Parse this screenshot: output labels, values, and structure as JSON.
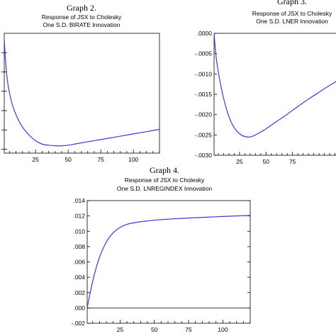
{
  "chart_data": [
    {
      "type": "line",
      "graph_title": "Graph 2.",
      "title": "Response of JSX to Cholesky",
      "subtitle": "One S.D. BIRATE Innovation",
      "xticks": [
        25,
        50,
        75,
        100
      ],
      "yticks": [],
      "xlim": [
        1,
        120
      ],
      "ylim": [
        -1.0,
        0.06
      ],
      "series": [
        {
          "x": [
            1,
            3,
            6,
            10,
            15,
            20,
            25,
            30,
            35,
            40,
            45,
            50,
            55,
            60,
            70,
            80,
            90,
            100,
            110,
            120
          ],
          "values": [
            0.0,
            -0.32,
            -0.52,
            -0.66,
            -0.77,
            -0.84,
            -0.89,
            -0.92,
            -0.93,
            -0.935,
            -0.935,
            -0.93,
            -0.92,
            -0.91,
            -0.89,
            -0.87,
            -0.85,
            -0.83,
            -0.81,
            -0.79
          ],
          "color": "#3b3bd6"
        }
      ]
    },
    {
      "type": "line",
      "graph_title": "Graph 3.",
      "title": "Response of JSX to Cholesky",
      "subtitle": "One S.D. LNER Innovation",
      "xticks": [
        25,
        50,
        75
      ],
      "yticks": [
        ".0000",
        "-.0005",
        "-.0010",
        "-.0015",
        "-.0020",
        "-.0025",
        "-.0030"
      ],
      "ytick_values": [
        0.0,
        -0.0005,
        -0.001,
        -0.0015,
        -0.002,
        -0.0025,
        -0.003
      ],
      "xlim": [
        1,
        120
      ],
      "ylim": [
        -0.003,
        0.0
      ],
      "series": [
        {
          "x": [
            1,
            3,
            6,
            10,
            15,
            20,
            25,
            30,
            35,
            40,
            45,
            50,
            55,
            60,
            70,
            80,
            90,
            100,
            110,
            120
          ],
          "values": [
            0.0,
            -0.0006,
            -0.0011,
            -0.0016,
            -0.00205,
            -0.00232,
            -0.00247,
            -0.00254,
            -0.00255,
            -0.0025,
            -0.00243,
            -0.00235,
            -0.00226,
            -0.00217,
            -0.00199,
            -0.0018,
            -0.00162,
            -0.00145,
            -0.00128,
            -0.00113
          ],
          "color": "#3b3bd6"
        }
      ]
    },
    {
      "type": "line",
      "graph_title": "Graph 4.",
      "title": "Response of JSX to Cholesky",
      "subtitle": "One S.D. LNREGINDEX Innovation",
      "xticks": [
        25,
        50,
        75,
        100
      ],
      "yticks": [
        ".014",
        ".012",
        ".010",
        ".008",
        ".006",
        ".004",
        ".002",
        ".000",
        "-.002"
      ],
      "ytick_values": [
        0.014,
        0.012,
        0.01,
        0.008,
        0.006,
        0.004,
        0.002,
        0.0,
        -0.002
      ],
      "xlim": [
        1,
        120
      ],
      "ylim": [
        -0.002,
        0.014
      ],
      "zero_line": true,
      "series": [
        {
          "x": [
            1,
            3,
            6,
            10,
            15,
            20,
            25,
            30,
            35,
            40,
            45,
            50,
            60,
            70,
            80,
            90,
            100,
            110,
            120
          ],
          "values": [
            0.0,
            0.0018,
            0.0042,
            0.0066,
            0.0086,
            0.0098,
            0.0105,
            0.0109,
            0.0111,
            0.01125,
            0.01135,
            0.01145,
            0.01158,
            0.01168,
            0.01177,
            0.01185,
            0.01193,
            0.012,
            0.01206
          ],
          "color": "#3b3bd6"
        }
      ]
    }
  ]
}
